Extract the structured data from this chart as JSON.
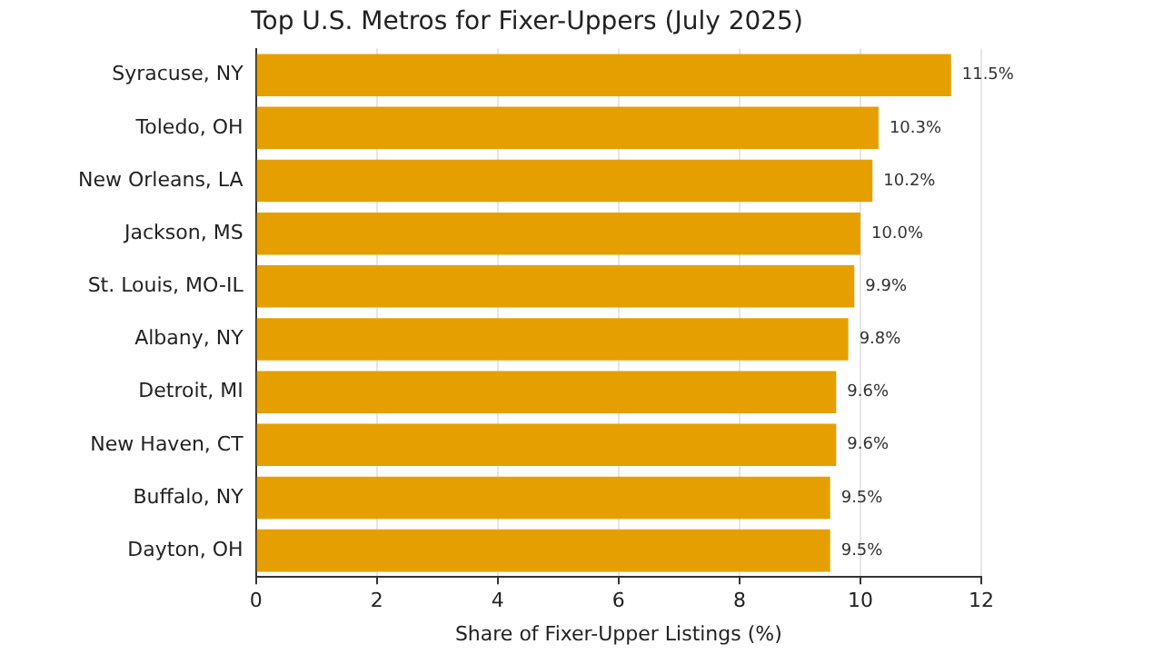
{
  "chart_data": {
    "type": "bar",
    "orientation": "horizontal",
    "title": "Top U.S. Metros for Fixer-Uppers (July 2025)",
    "xlabel": "Share of Fixer-Upper Listings (%)",
    "categories": [
      "Syracuse, NY",
      "Toledo, OH",
      "New Orleans, LA",
      "Jackson, MS",
      "St. Louis, MO-IL",
      "Albany, NY",
      "Detroit, MI",
      "New Haven, CT",
      "Buffalo, NY",
      "Dayton, OH"
    ],
    "values": [
      11.5,
      10.3,
      10.2,
      10.0,
      9.9,
      9.8,
      9.6,
      9.6,
      9.5,
      9.5
    ],
    "value_labels": [
      "11.5%",
      "10.3%",
      "10.2%",
      "10.0%",
      "9.9%",
      "9.8%",
      "9.6%",
      "9.6%",
      "9.5%",
      "9.5%"
    ],
    "color": "#e5a000",
    "xlim": [
      0,
      12
    ],
    "xticks": [
      0,
      2,
      4,
      6,
      8,
      10,
      12
    ],
    "grid": "x",
    "legend": false
  }
}
